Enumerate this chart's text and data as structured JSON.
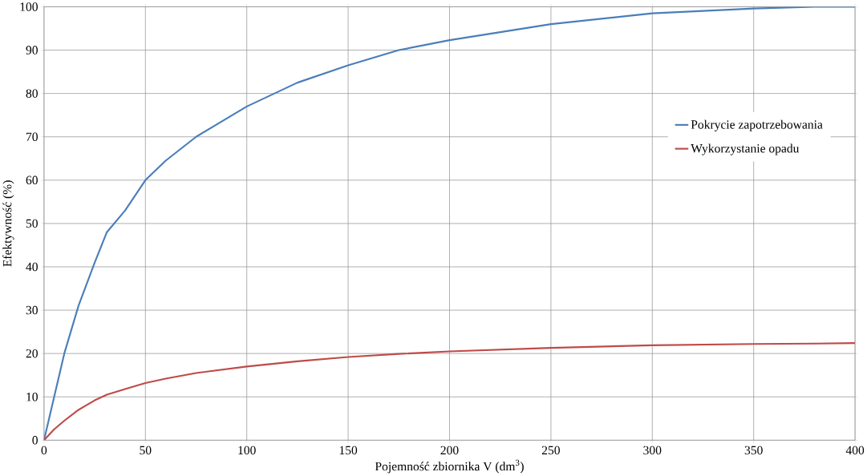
{
  "chart_data": {
    "type": "line",
    "xlabel": "Pojemność zbiornika V (dm$^{3}$)",
    "ylabel": "Efektywność (%)",
    "x": [
      0,
      5,
      10,
      17,
      25,
      31,
      40,
      50,
      60,
      75,
      100,
      125,
      150,
      175,
      200,
      250,
      300,
      350,
      380,
      400
    ],
    "series": [
      {
        "name": "Pokrycie zapotrzebowania",
        "color": "#4a7ebb",
        "values": [
          0,
          10,
          20,
          31,
          41,
          48,
          53,
          60,
          64.5,
          70,
          77,
          82.5,
          86.5,
          90,
          92.3,
          96,
          98.5,
          99.6,
          100,
          100
        ]
      },
      {
        "name": "Wykorzystanie opadu",
        "color": "#be4b48",
        "values": [
          0,
          2.5,
          4.5,
          7,
          9.2,
          10.5,
          11.8,
          13.2,
          14.2,
          15.5,
          17,
          18.2,
          19.2,
          19.9,
          20.5,
          21.3,
          21.9,
          22.2,
          22.3,
          22.4
        ]
      }
    ],
    "xlim": [
      0,
      400
    ],
    "xticks": [
      0,
      50,
      100,
      150,
      200,
      250,
      300,
      350,
      400
    ],
    "ylim": [
      0,
      100
    ],
    "yticks": [
      0,
      10,
      20,
      30,
      40,
      50,
      60,
      70,
      80,
      90,
      100
    ],
    "grid": true,
    "legend": "right",
    "marker": "none",
    "line_style": "solid"
  }
}
